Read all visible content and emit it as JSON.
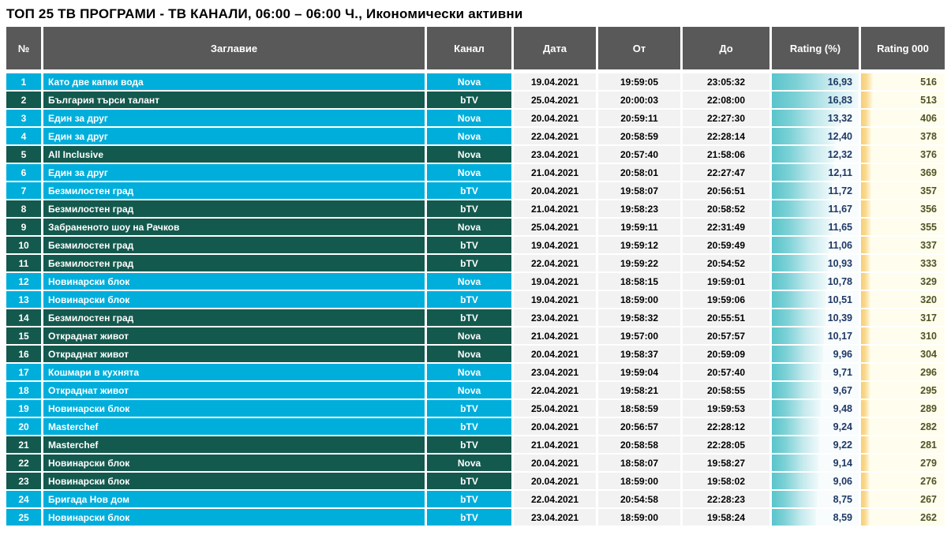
{
  "title": "ТОП 25 ТВ ПРОГРАМИ - ТВ КАНАЛИ, 06:00 – 06:00 Ч., Икономически активни",
  "colors": {
    "header_bg": "#595959",
    "row_cyan": "#00AEDC",
    "row_green": "#14594E",
    "bar_teal": "#58C5CB",
    "bar_orange": "#F7CE74",
    "rating_pct_text": "#1F3864",
    "rating_000_text": "#4F5326",
    "date_cell_bg": "#F2F2F2"
  },
  "chart_data": {
    "type": "table",
    "title": "ТОП 25 ТВ ПРОГРАМИ - ТВ КАНАЛИ, 06:00 – 06:00 Ч., Икономически активни",
    "columns": [
      "№",
      "Заглавие",
      "Канал",
      "Дата",
      "От",
      "До",
      "Rating (%)",
      "Rating 000"
    ],
    "bars": {
      "rating_pct": {
        "style": "teal-gradient-data-bar",
        "scale_max": 16.93
      },
      "rating_000": {
        "style": "orange-gradient-data-bar",
        "scale_max": 516
      }
    },
    "rows": [
      {
        "rank": "1",
        "title": "Като две капки вода",
        "channel": "Nova",
        "date": "19.04.2021",
        "from": "19:59:05",
        "to": "23:05:32",
        "rating_pct": "16,93",
        "rating_pct_num": 16.93,
        "rating_000": "516",
        "rating_000_num": 516,
        "highlighted": false
      },
      {
        "rank": "2",
        "title": "България търси талант",
        "channel": "bTV",
        "date": "25.04.2021",
        "from": "20:00:03",
        "to": "22:08:00",
        "rating_pct": "16,83",
        "rating_pct_num": 16.83,
        "rating_000": "513",
        "rating_000_num": 513,
        "highlighted": true
      },
      {
        "rank": "3",
        "title": "Един за друг",
        "channel": "Nova",
        "date": "20.04.2021",
        "from": "20:59:11",
        "to": "22:27:30",
        "rating_pct": "13,32",
        "rating_pct_num": 13.32,
        "rating_000": "406",
        "rating_000_num": 406,
        "highlighted": false
      },
      {
        "rank": "4",
        "title": "Един за друг",
        "channel": "Nova",
        "date": "22.04.2021",
        "from": "20:58:59",
        "to": "22:28:14",
        "rating_pct": "12,40",
        "rating_pct_num": 12.4,
        "rating_000": "378",
        "rating_000_num": 378,
        "highlighted": false
      },
      {
        "rank": "5",
        "title": "All Inclusive",
        "channel": "Nova",
        "date": "23.04.2021",
        "from": "20:57:40",
        "to": "21:58:06",
        "rating_pct": "12,32",
        "rating_pct_num": 12.32,
        "rating_000": "376",
        "rating_000_num": 376,
        "highlighted": true
      },
      {
        "rank": "6",
        "title": "Един за друг",
        "channel": "Nova",
        "date": "21.04.2021",
        "from": "20:58:01",
        "to": "22:27:47",
        "rating_pct": "12,11",
        "rating_pct_num": 12.11,
        "rating_000": "369",
        "rating_000_num": 369,
        "highlighted": false
      },
      {
        "rank": "7",
        "title": "Безмилостен град",
        "channel": "bTV",
        "date": "20.04.2021",
        "from": "19:58:07",
        "to": "20:56:51",
        "rating_pct": "11,72",
        "rating_pct_num": 11.72,
        "rating_000": "357",
        "rating_000_num": 357,
        "highlighted": false
      },
      {
        "rank": "8",
        "title": "Безмилостен град",
        "channel": "bTV",
        "date": "21.04.2021",
        "from": "19:58:23",
        "to": "20:58:52",
        "rating_pct": "11,67",
        "rating_pct_num": 11.67,
        "rating_000": "356",
        "rating_000_num": 356,
        "highlighted": true
      },
      {
        "rank": "9",
        "title": "Забраненото шоу на Рачков",
        "channel": "Nova",
        "date": "25.04.2021",
        "from": "19:59:11",
        "to": "22:31:49",
        "rating_pct": "11,65",
        "rating_pct_num": 11.65,
        "rating_000": "355",
        "rating_000_num": 355,
        "highlighted": true
      },
      {
        "rank": "10",
        "title": "Безмилостен град",
        "channel": "bTV",
        "date": "19.04.2021",
        "from": "19:59:12",
        "to": "20:59:49",
        "rating_pct": "11,06",
        "rating_pct_num": 11.06,
        "rating_000": "337",
        "rating_000_num": 337,
        "highlighted": true
      },
      {
        "rank": "11",
        "title": "Безмилостен град",
        "channel": "bTV",
        "date": "22.04.2021",
        "from": "19:59:22",
        "to": "20:54:52",
        "rating_pct": "10,93",
        "rating_pct_num": 10.93,
        "rating_000": "333",
        "rating_000_num": 333,
        "highlighted": true
      },
      {
        "rank": "12",
        "title": "Новинарски блок",
        "channel": "Nova",
        "date": "19.04.2021",
        "from": "18:58:15",
        "to": "19:59:01",
        "rating_pct": "10,78",
        "rating_pct_num": 10.78,
        "rating_000": "329",
        "rating_000_num": 329,
        "highlighted": false
      },
      {
        "rank": "13",
        "title": "Новинарски блок",
        "channel": "bTV",
        "date": "19.04.2021",
        "from": "18:59:00",
        "to": "19:59:06",
        "rating_pct": "10,51",
        "rating_pct_num": 10.51,
        "rating_000": "320",
        "rating_000_num": 320,
        "highlighted": false
      },
      {
        "rank": "14",
        "title": "Безмилостен град",
        "channel": "bTV",
        "date": "23.04.2021",
        "from": "19:58:32",
        "to": "20:55:51",
        "rating_pct": "10,39",
        "rating_pct_num": 10.39,
        "rating_000": "317",
        "rating_000_num": 317,
        "highlighted": true
      },
      {
        "rank": "15",
        "title": "Откраднат живот",
        "channel": "Nova",
        "date": "21.04.2021",
        "from": "19:57:00",
        "to": "20:57:57",
        "rating_pct": "10,17",
        "rating_pct_num": 10.17,
        "rating_000": "310",
        "rating_000_num": 310,
        "highlighted": true
      },
      {
        "rank": "16",
        "title": "Откраднат живот",
        "channel": "Nova",
        "date": "20.04.2021",
        "from": "19:58:37",
        "to": "20:59:09",
        "rating_pct": "9,96",
        "rating_pct_num": 9.96,
        "rating_000": "304",
        "rating_000_num": 304,
        "highlighted": true
      },
      {
        "rank": "17",
        "title": "Кошмари в кухнята",
        "channel": "Nova",
        "date": "23.04.2021",
        "from": "19:59:04",
        "to": "20:57:40",
        "rating_pct": "9,71",
        "rating_pct_num": 9.71,
        "rating_000": "296",
        "rating_000_num": 296,
        "highlighted": false
      },
      {
        "rank": "18",
        "title": "Откраднат живот",
        "channel": "Nova",
        "date": "22.04.2021",
        "from": "19:58:21",
        "to": "20:58:55",
        "rating_pct": "9,67",
        "rating_pct_num": 9.67,
        "rating_000": "295",
        "rating_000_num": 295,
        "highlighted": false
      },
      {
        "rank": "19",
        "title": "Новинарски блок",
        "channel": "bTV",
        "date": "25.04.2021",
        "from": "18:58:59",
        "to": "19:59:53",
        "rating_pct": "9,48",
        "rating_pct_num": 9.48,
        "rating_000": "289",
        "rating_000_num": 289,
        "highlighted": false
      },
      {
        "rank": "20",
        "title": "Masterchef",
        "channel": "bTV",
        "date": "20.04.2021",
        "from": "20:56:57",
        "to": "22:28:12",
        "rating_pct": "9,24",
        "rating_pct_num": 9.24,
        "rating_000": "282",
        "rating_000_num": 282,
        "highlighted": false
      },
      {
        "rank": "21",
        "title": "Masterchef",
        "channel": "bTV",
        "date": "21.04.2021",
        "from": "20:58:58",
        "to": "22:28:05",
        "rating_pct": "9,22",
        "rating_pct_num": 9.22,
        "rating_000": "281",
        "rating_000_num": 281,
        "highlighted": true
      },
      {
        "rank": "22",
        "title": "Новинарски блок",
        "channel": "Nova",
        "date": "20.04.2021",
        "from": "18:58:07",
        "to": "19:58:27",
        "rating_pct": "9,14",
        "rating_pct_num": 9.14,
        "rating_000": "279",
        "rating_000_num": 279,
        "highlighted": true
      },
      {
        "rank": "23",
        "title": "Новинарски блок",
        "channel": "bTV",
        "date": "20.04.2021",
        "from": "18:59:00",
        "to": "19:58:02",
        "rating_pct": "9,06",
        "rating_pct_num": 9.06,
        "rating_000": "276",
        "rating_000_num": 276,
        "highlighted": true
      },
      {
        "rank": "24",
        "title": "Бригада Нов дом",
        "channel": "bTV",
        "date": "22.04.2021",
        "from": "20:54:58",
        "to": "22:28:23",
        "rating_pct": "8,75",
        "rating_pct_num": 8.75,
        "rating_000": "267",
        "rating_000_num": 267,
        "highlighted": false
      },
      {
        "rank": "25",
        "title": "Новинарски блок",
        "channel": "bTV",
        "date": "23.04.2021",
        "from": "18:59:00",
        "to": "19:58:24",
        "rating_pct": "8,59",
        "rating_pct_num": 8.59,
        "rating_000": "262",
        "rating_000_num": 262,
        "highlighted": false
      }
    ]
  }
}
